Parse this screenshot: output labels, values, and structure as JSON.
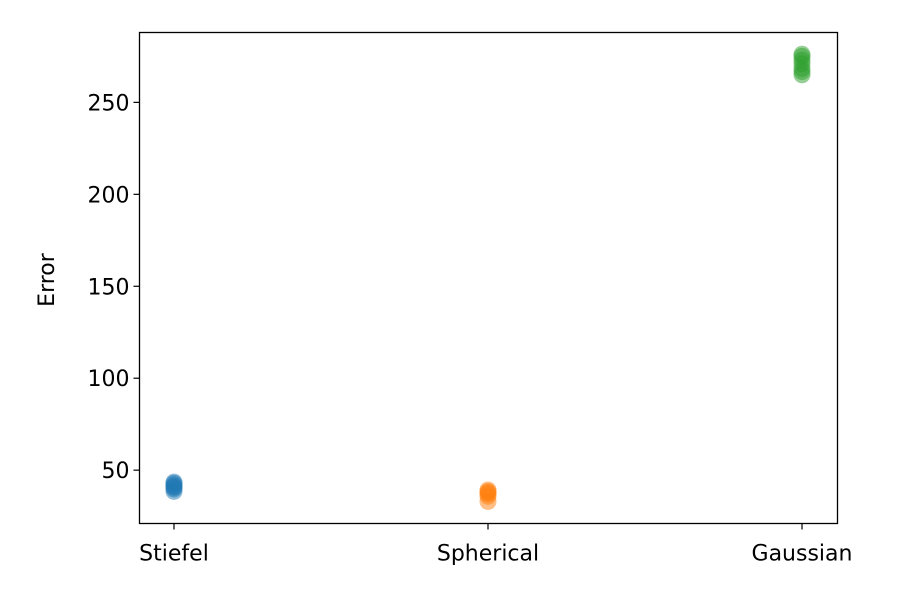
{
  "chart_data": {
    "type": "scatter",
    "title": "",
    "xlabel": "",
    "ylabel": "Error",
    "categories": [
      "Stiefel",
      "Spherical",
      "Gaussian"
    ],
    "ylim": [
      21,
      288
    ],
    "yticks": [
      50,
      100,
      150,
      200,
      250
    ],
    "grid": false,
    "legend": "none",
    "series": [
      {
        "category": "Stiefel",
        "color": "#1f77b4",
        "values": [
          38.5,
          39.8,
          40.6,
          41.2,
          42.0,
          42.8,
          43.5
        ]
      },
      {
        "category": "Spherical",
        "color": "#ff7f0e",
        "values": [
          33.0,
          35.8,
          37.0,
          37.8,
          38.4,
          39.2
        ]
      },
      {
        "category": "Gaussian",
        "color": "#2ca02c",
        "values": [
          265.0,
          266.8,
          268.5,
          271.0,
          273.0,
          275.0,
          276.2
        ]
      }
    ]
  }
}
